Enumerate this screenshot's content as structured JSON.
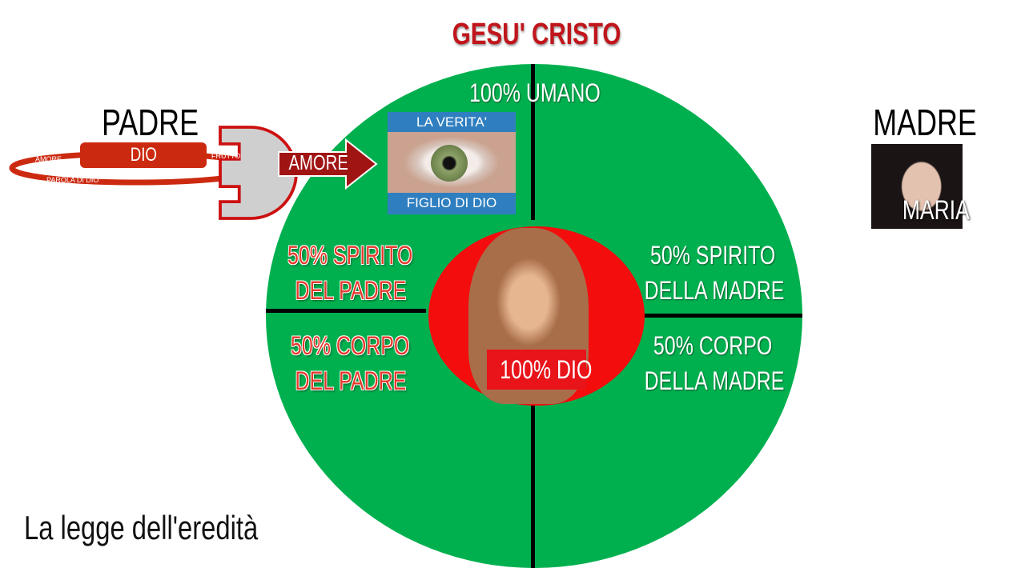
{
  "title": "GESU' CRISTO",
  "quadrants": {
    "top": "100% UMANO",
    "left_top": [
      "50% SPIRITO",
      "DEL PADRE"
    ],
    "left_bottom": [
      "50%  CORPO",
      "DEL PADRE"
    ],
    "right_top": [
      "50% SPIRITO",
      "DELLA MADRE"
    ],
    "right_bottom": [
      "50% CORPO",
      "DELLA MADRE"
    ],
    "center": "100% DIO"
  },
  "padre": {
    "label": "PADRE",
    "dio": "DIO",
    "amore_small": "AMORE",
    "frutto": "FRUTTO",
    "parola": "PAROLA DI DIO",
    "arrow": "AMORE"
  },
  "eye": {
    "top": "LA VERITA'",
    "bottom": "FIGLIO DI DIO"
  },
  "madre": {
    "label": "MADRE",
    "name": "MARIA"
  },
  "footer": "La legge dell'eredità",
  "colors": {
    "green": "#00b04f",
    "red": "#f30d0d",
    "title": "#c0161c",
    "blue": "#2f7fc0"
  }
}
